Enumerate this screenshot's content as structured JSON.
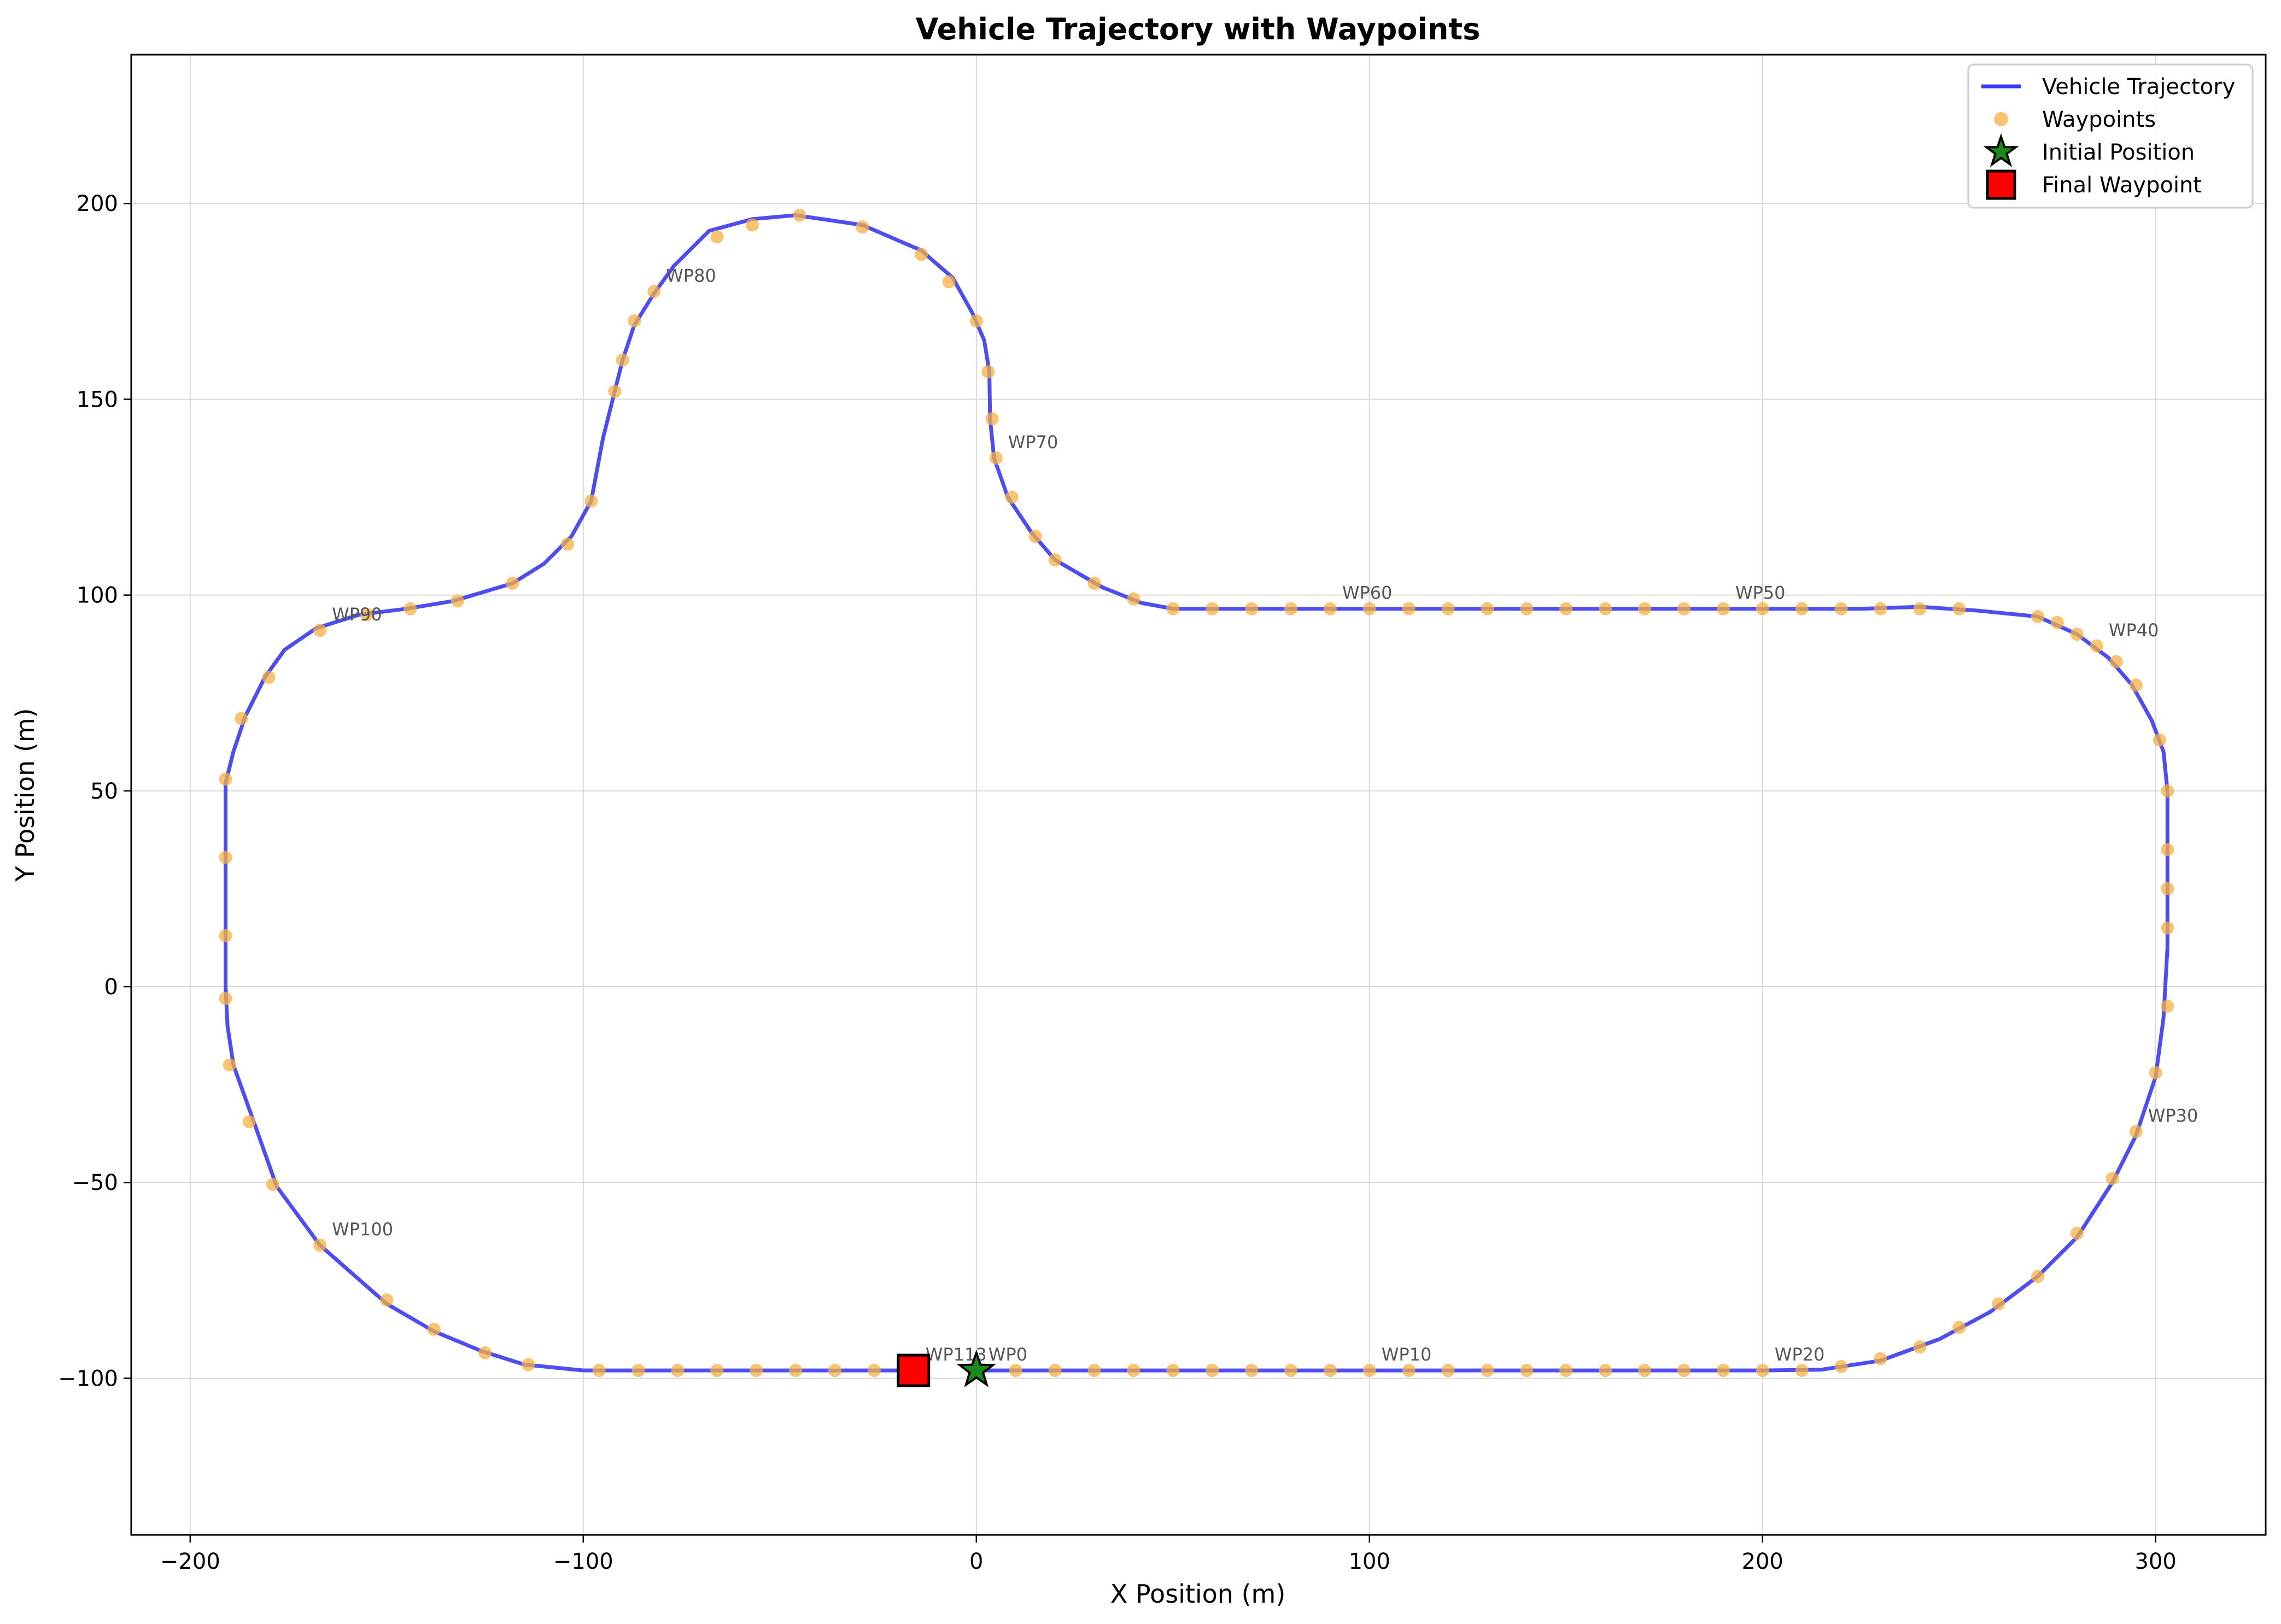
{
  "chart_data": {
    "type": "line",
    "title": "Vehicle Trajectory with Waypoints",
    "xlabel": "X Position (m)",
    "ylabel": "Y Position (m)",
    "xlim": [
      -215,
      328
    ],
    "ylim": [
      -140,
      238
    ],
    "x_ticks": [
      -200,
      -100,
      0,
      100,
      200,
      300
    ],
    "y_ticks": [
      -100,
      -50,
      0,
      50,
      100,
      150,
      200
    ],
    "x_tick_labels": [
      "−200",
      "−100",
      "0",
      "100",
      "200",
      "300"
    ],
    "y_tick_labels": [
      "−100",
      "−50",
      "0",
      "50",
      "100",
      "150",
      "200"
    ],
    "grid": true,
    "legend_position": "top-right",
    "legend": [
      {
        "label": "Vehicle Trajectory",
        "kind": "line",
        "color": "#3a3af0"
      },
      {
        "label": "Waypoints",
        "kind": "circle",
        "color": "#f5b041"
      },
      {
        "label": "Initial Position",
        "kind": "star",
        "color": "#1a8a1a"
      },
      {
        "label": "Final Waypoint",
        "kind": "square",
        "color": "#ff0000"
      }
    ],
    "colors": {
      "trajectory": "#3a3af0",
      "waypoint": "#f5b041",
      "initial": "#1a8a1a",
      "final": "#ff0000"
    },
    "trajectory": [
      [
        0,
        -98
      ],
      [
        100,
        -98
      ],
      [
        200,
        -98
      ],
      [
        215,
        -97.8
      ],
      [
        230,
        -95.5
      ],
      [
        245,
        -90
      ],
      [
        258,
        -83
      ],
      [
        270,
        -74
      ],
      [
        280,
        -64
      ],
      [
        289,
        -50
      ],
      [
        295,
        -38
      ],
      [
        300,
        -23
      ],
      [
        302,
        -8
      ],
      [
        303,
        10
      ],
      [
        303,
        35
      ],
      [
        303,
        50
      ],
      [
        302,
        60
      ],
      [
        299,
        68
      ],
      [
        294,
        77
      ],
      [
        288,
        84
      ],
      [
        280,
        90
      ],
      [
        270,
        94.5
      ],
      [
        255,
        96
      ],
      [
        240,
        97
      ],
      [
        225,
        96.5
      ],
      [
        210,
        96.5
      ],
      [
        190,
        96.5
      ],
      [
        150,
        96.5
      ],
      [
        100,
        96.5
      ],
      [
        50,
        96.5
      ],
      [
        42,
        98
      ],
      [
        32,
        102
      ],
      [
        20,
        109
      ],
      [
        14,
        116
      ],
      [
        8,
        125
      ],
      [
        4.5,
        135
      ],
      [
        3.5,
        145
      ],
      [
        3.3,
        157
      ],
      [
        2,
        165
      ],
      [
        -1,
        172
      ],
      [
        -6,
        181
      ],
      [
        -14,
        188
      ],
      [
        -29,
        194.5
      ],
      [
        -46,
        197
      ],
      [
        -57,
        196
      ],
      [
        -68,
        193
      ],
      [
        -77,
        184
      ],
      [
        -82,
        177
      ],
      [
        -87,
        169
      ],
      [
        -90,
        160
      ],
      [
        -92,
        152
      ],
      [
        -95,
        140
      ],
      [
        -98,
        124
      ],
      [
        -103,
        115
      ],
      [
        -110,
        108
      ],
      [
        -118,
        103
      ],
      [
        -133,
        98.5
      ],
      [
        -145,
        96.5
      ],
      [
        -157,
        95
      ],
      [
        -168,
        91.5
      ],
      [
        -176,
        86
      ],
      [
        -181,
        79
      ],
      [
        -186,
        69
      ],
      [
        -189,
        60
      ],
      [
        -191,
        52
      ],
      [
        -191,
        30
      ],
      [
        -191,
        0
      ],
      [
        -190.5,
        -10
      ],
      [
        -189,
        -20
      ],
      [
        -184,
        -34
      ],
      [
        -178,
        -51
      ],
      [
        -167,
        -66
      ],
      [
        -150,
        -81
      ],
      [
        -138,
        -88
      ],
      [
        -126,
        -93
      ],
      [
        -115,
        -96.5
      ],
      [
        -100,
        -98
      ],
      [
        -50,
        -98
      ],
      [
        -17,
        -98
      ]
    ],
    "waypoints": [
      [
        0,
        -98
      ],
      [
        10,
        -98
      ],
      [
        20,
        -98
      ],
      [
        30,
        -98
      ],
      [
        40,
        -98
      ],
      [
        50,
        -98
      ],
      [
        60,
        -98
      ],
      [
        70,
        -98
      ],
      [
        80,
        -98
      ],
      [
        90,
        -98
      ],
      [
        100,
        -98
      ],
      [
        110,
        -98
      ],
      [
        120,
        -98
      ],
      [
        130,
        -98
      ],
      [
        140,
        -98
      ],
      [
        150,
        -98
      ],
      [
        160,
        -98
      ],
      [
        170,
        -98
      ],
      [
        180,
        -98
      ],
      [
        190,
        -98
      ],
      [
        200,
        -98
      ],
      [
        210,
        -98
      ],
      [
        220,
        -97
      ],
      [
        230,
        -95
      ],
      [
        240,
        -92
      ],
      [
        250,
        -87
      ],
      [
        260,
        -81
      ],
      [
        270,
        -74
      ],
      [
        280,
        -63
      ],
      [
        289,
        -49
      ],
      [
        295,
        -37
      ],
      [
        300,
        -22
      ],
      [
        303,
        -5
      ],
      [
        303,
        15
      ],
      [
        303,
        25
      ],
      [
        303,
        35
      ],
      [
        303,
        50
      ],
      [
        301,
        63
      ],
      [
        295,
        77
      ],
      [
        290,
        83
      ],
      [
        285,
        87
      ],
      [
        280,
        90
      ],
      [
        275,
        93
      ],
      [
        270,
        94.5
      ],
      [
        250,
        96.5
      ],
      [
        240,
        96.5
      ],
      [
        230,
        96.5
      ],
      [
        220,
        96.5
      ],
      [
        210,
        96.5
      ],
      [
        200,
        96.5
      ],
      [
        190,
        96.5
      ],
      [
        180,
        96.5
      ],
      [
        170,
        96.5
      ],
      [
        160,
        96.5
      ],
      [
        150,
        96.5
      ],
      [
        140,
        96.5
      ],
      [
        130,
        96.5
      ],
      [
        120,
        96.5
      ],
      [
        110,
        96.5
      ],
      [
        100,
        96.5
      ],
      [
        90,
        96.5
      ],
      [
        80,
        96.5
      ],
      [
        70,
        96.5
      ],
      [
        60,
        96.5
      ],
      [
        50,
        96.5
      ],
      [
        40,
        99
      ],
      [
        30,
        103
      ],
      [
        20,
        109
      ],
      [
        15,
        115
      ],
      [
        9,
        125
      ],
      [
        5,
        135
      ],
      [
        4,
        145
      ],
      [
        3,
        157
      ],
      [
        0,
        170
      ],
      [
        -7,
        180
      ],
      [
        -14,
        187
      ],
      [
        -29,
        194
      ],
      [
        -45,
        197
      ],
      [
        -57,
        194.5
      ],
      [
        -66,
        191.5
      ],
      [
        -82,
        177.5
      ],
      [
        -87,
        170
      ],
      [
        -90,
        160
      ],
      [
        -92,
        152
      ],
      [
        -98,
        124
      ],
      [
        -104,
        113
      ],
      [
        -118,
        103
      ],
      [
        -132,
        98.5
      ],
      [
        -144,
        96.5
      ],
      [
        -155,
        95
      ],
      [
        -167,
        91
      ],
      [
        -180,
        79
      ],
      [
        -187,
        68.5
      ],
      [
        -191,
        53
      ],
      [
        -191,
        33
      ],
      [
        -191,
        13
      ],
      [
        -191,
        -3
      ],
      [
        -190,
        -20
      ],
      [
        -185,
        -34.5
      ],
      [
        -179,
        -50.5
      ],
      [
        -167,
        -66
      ],
      [
        -150,
        -80
      ],
      [
        -138,
        -87.5
      ],
      [
        -125,
        -93.5
      ],
      [
        -114,
        -96.5
      ],
      [
        -96,
        -98
      ],
      [
        -86,
        -98
      ],
      [
        -76,
        -98
      ],
      [
        -66,
        -98
      ],
      [
        -56,
        -98
      ],
      [
        -46,
        -98
      ],
      [
        -36,
        -98
      ],
      [
        -26,
        -98
      ]
    ],
    "waypoint_labels": [
      {
        "text": "WP0",
        "x": 0,
        "y": -98
      },
      {
        "text": "WP10",
        "x": 100,
        "y": -98
      },
      {
        "text": "WP20",
        "x": 200,
        "y": -98
      },
      {
        "text": "WP30",
        "x": 295,
        "y": -37
      },
      {
        "text": "WP40",
        "x": 285,
        "y": 87
      },
      {
        "text": "WP50",
        "x": 190,
        "y": 96.5
      },
      {
        "text": "WP60",
        "x": 90,
        "y": 96.5
      },
      {
        "text": "WP70",
        "x": 5,
        "y": 135
      },
      {
        "text": "WP80",
        "x": -82,
        "y": 177.5
      },
      {
        "text": "WP90",
        "x": -167,
        "y": 91
      },
      {
        "text": "WP100",
        "x": -167,
        "y": -66
      },
      {
        "text": "WP113",
        "x": -16,
        "y": -98
      }
    ],
    "initial_position": [
      0,
      -98
    ],
    "final_waypoint": [
      -16,
      -98
    ]
  }
}
